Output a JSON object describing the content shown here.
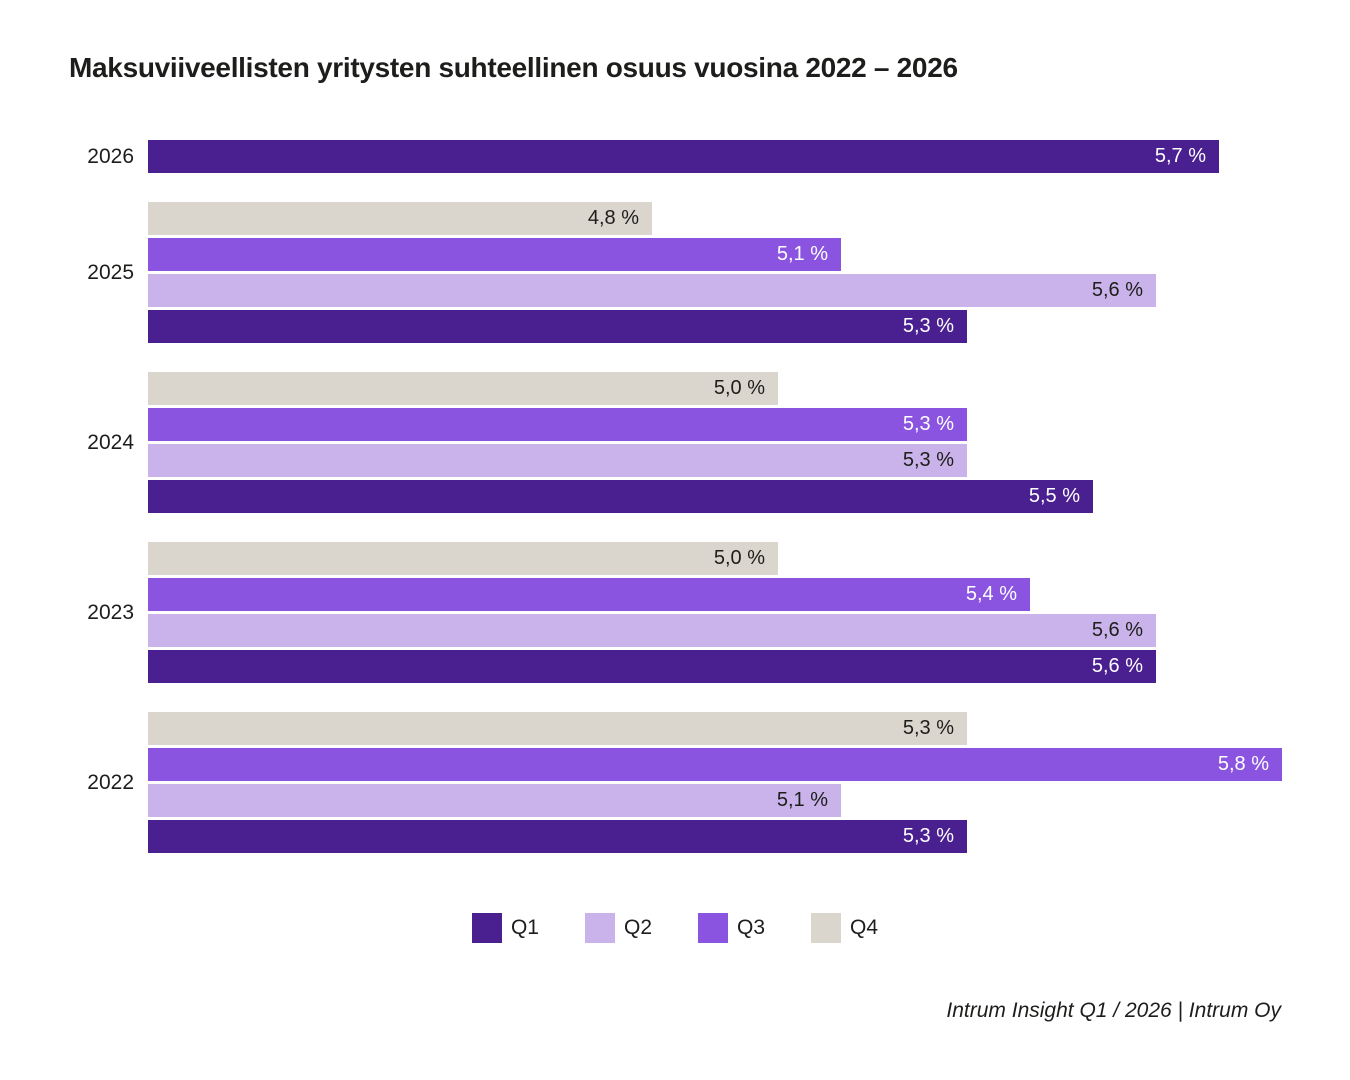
{
  "title": "Maksuviiveellisten yritysten suhteellinen osuus vuosina 2022 – 2026",
  "footer": "Intrum Insight Q1 / 2026 | Intrum Oy",
  "colors": {
    "background": "#ffffff",
    "text_dark": "#1d1d1b",
    "text_light": "#ffffff",
    "q1": "#4a2090",
    "q2": "#c9b3ea",
    "q3": "#8a54e0",
    "q4": "#dad6cd"
  },
  "value_label_colors": {
    "Q1": "#ffffff",
    "Q2": "#1d1d1b",
    "Q3": "#ffffff",
    "Q4": "#1d1d1b"
  },
  "legend": {
    "items": [
      {
        "label": "Q1",
        "color": "#4a2090"
      },
      {
        "label": "Q2",
        "color": "#c9b3ea"
      },
      {
        "label": "Q3",
        "color": "#8a54e0"
      },
      {
        "label": "Q4",
        "color": "#dad6cd"
      }
    ]
  },
  "chart_data": {
    "type": "bar",
    "orientation": "horizontal",
    "title": "Maksuviiveellisten yritysten suhteellinen osuus vuosina 2022 – 2026",
    "value_unit": "%",
    "decimal_separator": ",",
    "xlim": [
      4.0,
      5.9
    ],
    "grid": false,
    "axis_labels_visible": false,
    "legend_position": "bottom-center",
    "categories": [
      "2026",
      "2025",
      "2024",
      "2023",
      "2022"
    ],
    "bar_order_note": "bars listed top-to-bottom within each year group",
    "groups": [
      {
        "year": "2026",
        "bars": [
          {
            "quarter": "Q1",
            "value": 5.7,
            "label": "5,7 %"
          }
        ]
      },
      {
        "year": "2025",
        "bars": [
          {
            "quarter": "Q4",
            "value": 4.8,
            "label": "4,8 %"
          },
          {
            "quarter": "Q3",
            "value": 5.1,
            "label": "5,1 %"
          },
          {
            "quarter": "Q2",
            "value": 5.6,
            "label": "5,6 %"
          },
          {
            "quarter": "Q1",
            "value": 5.3,
            "label": "5,3 %"
          }
        ]
      },
      {
        "year": "2024",
        "bars": [
          {
            "quarter": "Q4",
            "value": 5.0,
            "label": "5,0 %"
          },
          {
            "quarter": "Q3",
            "value": 5.3,
            "label": "5,3 %"
          },
          {
            "quarter": "Q2",
            "value": 5.3,
            "label": "5,3 %"
          },
          {
            "quarter": "Q1",
            "value": 5.5,
            "label": "5,5 %"
          }
        ]
      },
      {
        "year": "2023",
        "bars": [
          {
            "quarter": "Q4",
            "value": 5.0,
            "label": "5,0 %"
          },
          {
            "quarter": "Q3",
            "value": 5.4,
            "label": "5,4 %"
          },
          {
            "quarter": "Q2",
            "value": 5.6,
            "label": "5,6 %"
          },
          {
            "quarter": "Q1",
            "value": 5.6,
            "label": "5,6 %"
          }
        ]
      },
      {
        "year": "2022",
        "bars": [
          {
            "quarter": "Q4",
            "value": 5.3,
            "label": "5,3 %"
          },
          {
            "quarter": "Q3",
            "value": 5.8,
            "label": "5,8 %"
          },
          {
            "quarter": "Q2",
            "value": 5.1,
            "label": "5,1 %"
          },
          {
            "quarter": "Q1",
            "value": 5.3,
            "label": "5,3 %"
          }
        ]
      }
    ]
  }
}
